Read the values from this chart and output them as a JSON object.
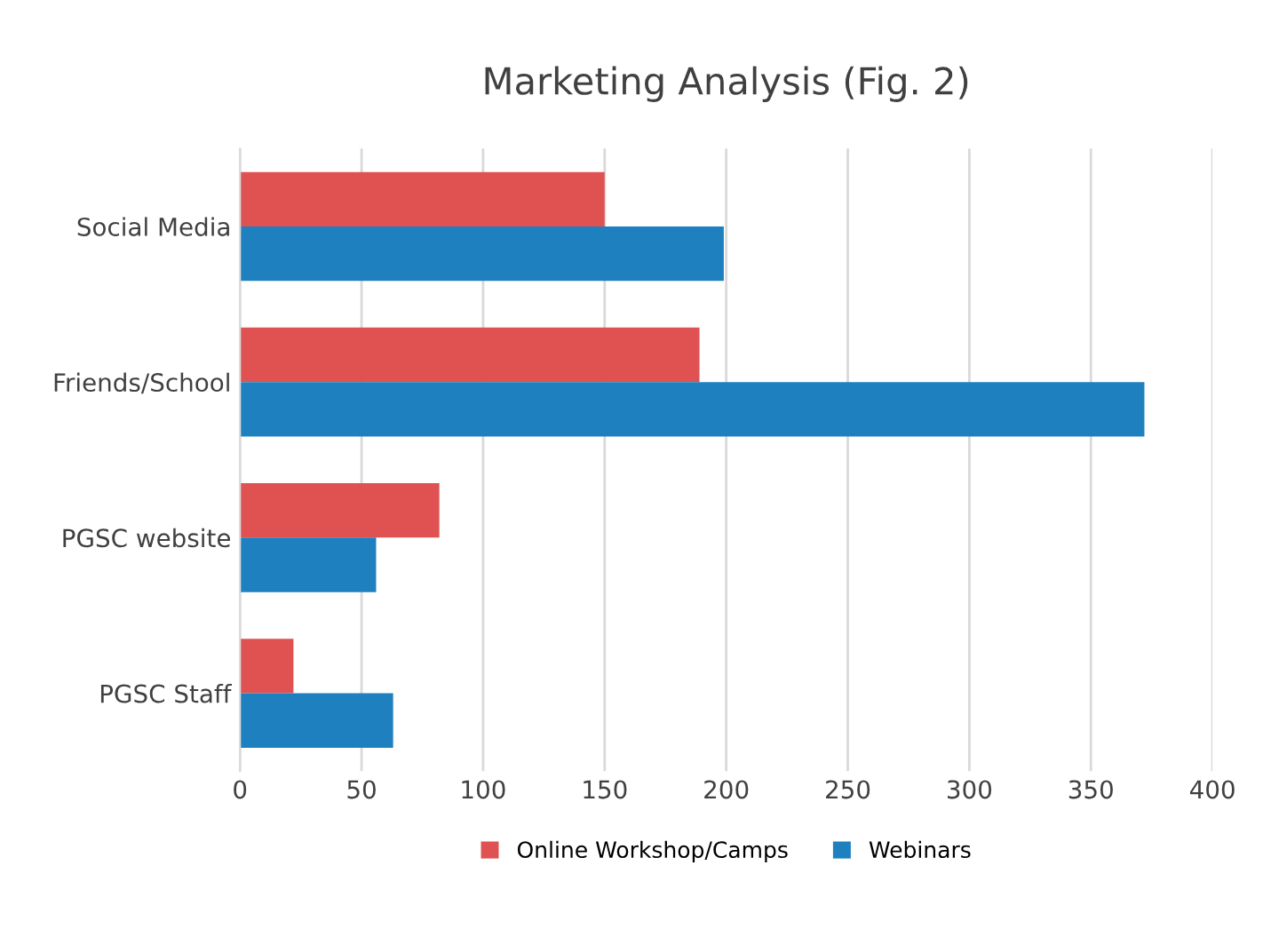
{
  "chart_data": {
    "type": "bar",
    "orientation": "horizontal",
    "title": "Marketing Analysis (Fig. 2)",
    "categories": [
      "Social Media",
      "Friends/School",
      "PGSC website",
      "PGSC Staff"
    ],
    "series": [
      {
        "name": "Online Workshop/Camps",
        "color": "#e05252",
        "values": [
          150,
          189,
          82,
          22
        ]
      },
      {
        "name": "Webinars",
        "color": "#1f80c0",
        "values": [
          199,
          372,
          56,
          63
        ]
      }
    ],
    "xlim": [
      0,
      400
    ],
    "xticks": [
      0,
      50,
      100,
      150,
      200,
      250,
      300,
      350,
      400
    ],
    "grid": "x",
    "legend": "bottom"
  }
}
